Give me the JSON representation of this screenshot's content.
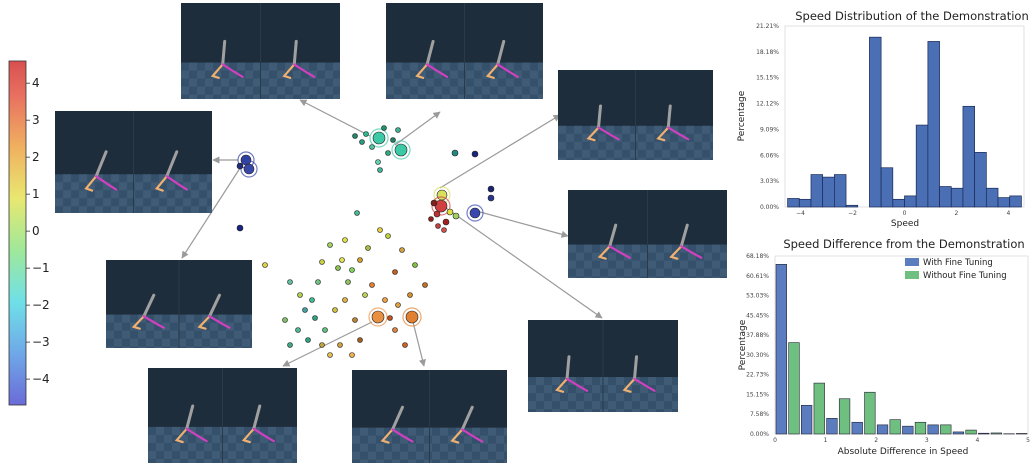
{
  "colors": {
    "with_fine_tuning": "#5b7dbf",
    "without_fine_tuning": "#6fbf80",
    "histogram": "#4a6fb5",
    "panel_sky": "#1e2d3b",
    "panel_floor": "#35506a",
    "walker_grey": "#a0a0a0",
    "walker_orange": "#f0b070",
    "walker_pink": "#d040c0"
  },
  "colorbar": {
    "min": -4.7,
    "max": 4.6,
    "ticks": [
      "4",
      "3",
      "2",
      "1",
      "0",
      "−1",
      "−2",
      "−3",
      "−4"
    ],
    "tick_values": [
      4,
      3,
      2,
      1,
      0,
      -1,
      -2,
      -3,
      -4
    ]
  },
  "chart_data": [
    {
      "type": "bar",
      "title": "Speed Distribution of the Demonstration",
      "xlabel": "Speed",
      "ylabel": "Percentage",
      "xlim": [
        -4.6,
        4.6
      ],
      "ylim": [
        0,
        21.21
      ],
      "xticks": [
        "−4",
        "−2",
        "0",
        "2",
        "4"
      ],
      "xtick_values": [
        -4,
        -2,
        0,
        2,
        4
      ],
      "yticks": [
        "0.00%",
        "3.03%",
        "6.06%",
        "9.09%",
        "12.12%",
        "15.15%",
        "18.18%",
        "21.21%"
      ],
      "ytick_values": [
        0,
        3.03,
        6.06,
        9.09,
        12.12,
        15.15,
        18.18,
        21.21
      ],
      "bin_width": 0.45,
      "bin_starts": [
        -4.5,
        -4.05,
        -3.6,
        -3.15,
        -2.7,
        -2.25,
        -1.35,
        -0.9,
        -0.45,
        0.0,
        0.45,
        0.9,
        1.35,
        1.8,
        2.25,
        2.7,
        3.15,
        3.6,
        4.05
      ],
      "values": [
        1.0,
        0.9,
        3.8,
        3.5,
        3.8,
        0.2,
        19.9,
        4.6,
        0.9,
        1.3,
        9.6,
        19.4,
        2.4,
        2.2,
        11.8,
        6.4,
        2.2,
        1.1,
        1.3
      ]
    },
    {
      "type": "bar",
      "title": "Speed Difference from the Demonstration",
      "xlabel": "Absolute Difference in Speed",
      "ylabel": "Percentage",
      "xlim": [
        0,
        5
      ],
      "ylim": [
        0,
        68.18
      ],
      "xticks": [
        "0",
        "1",
        "2",
        "3",
        "4",
        "5"
      ],
      "xtick_values": [
        0,
        1,
        2,
        3,
        4,
        5
      ],
      "yticks": [
        "0.00%",
        "7.58%",
        "15.15%",
        "22.73%",
        "30.30%",
        "37.88%",
        "45.45%",
        "53.03%",
        "60.61%",
        "68.18%"
      ],
      "ytick_values": [
        0,
        7.58,
        15.15,
        22.73,
        30.3,
        37.88,
        45.45,
        53.03,
        60.61,
        68.18
      ],
      "bin_width": 0.5,
      "categories": [
        0.25,
        0.75,
        1.25,
        1.75,
        2.25,
        2.75,
        3.25,
        3.75,
        4.25,
        4.75
      ],
      "series": [
        {
          "name": "With Fine Tuning",
          "values": [
            65.0,
            11.0,
            6.0,
            4.5,
            3.5,
            3.0,
            3.5,
            0.8,
            0.3,
            0.1
          ]
        },
        {
          "name": "Without Fine Tuning",
          "values": [
            35.0,
            19.5,
            13.5,
            16.0,
            5.5,
            4.5,
            3.5,
            1.5,
            0.4,
            0.2
          ]
        }
      ],
      "legend": "top-right"
    }
  ]
}
